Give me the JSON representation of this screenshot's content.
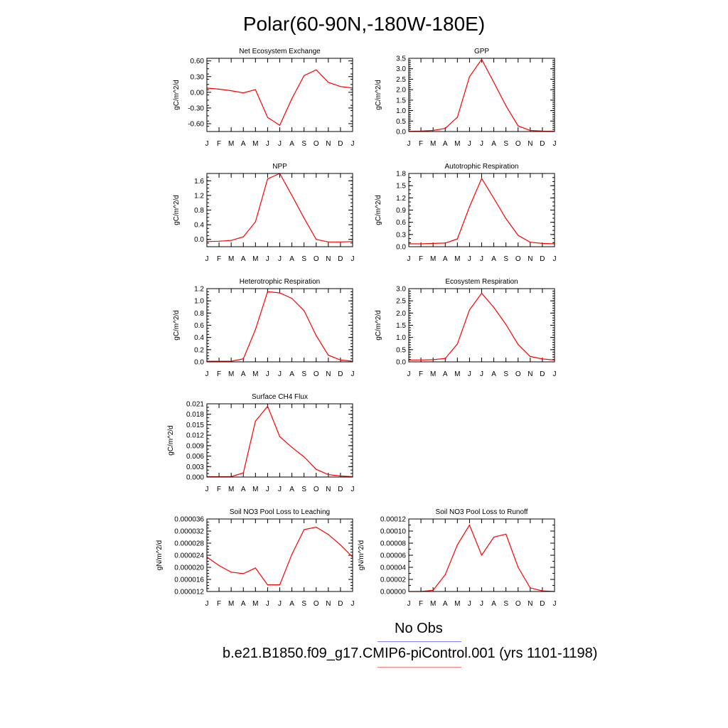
{
  "title": "Polar(60-90N,-180W-180E)",
  "month_labels": [
    "J",
    "F",
    "M",
    "A",
    "M",
    "J",
    "J",
    "A",
    "S",
    "O",
    "N",
    "D",
    "J"
  ],
  "line_color": "#ff0000",
  "chart_data": [
    {
      "type": "line",
      "title": "Net Ecosystem Exchange",
      "ylabel": "gC/m^2/d",
      "ylim": [
        -0.75,
        0.65
      ],
      "yticks": [
        -0.6,
        -0.3,
        0.0,
        0.3,
        0.6
      ],
      "ytick_labels": [
        "-0.60",
        "-0.30",
        "0.00",
        "0.30",
        "0.60"
      ],
      "yminor": 0.1,
      "values": [
        0.08,
        0.06,
        0.03,
        -0.01,
        0.05,
        -0.48,
        -0.63,
        -0.12,
        0.32,
        0.43,
        0.19,
        0.11,
        0.08
      ]
    },
    {
      "type": "line",
      "title": "GPP",
      "ylabel": "gC/m^2/d",
      "ylim": [
        0,
        3.5
      ],
      "yticks": [
        0,
        0.5,
        1.0,
        1.5,
        2.0,
        2.5,
        3.0,
        3.5
      ],
      "ytick_labels": [
        "0.0",
        "0.5",
        "1.0",
        "1.5",
        "2.0",
        "2.5",
        "3.0",
        "3.5"
      ],
      "yminor": 0.1,
      "values": [
        0.01,
        0.02,
        0.05,
        0.15,
        0.68,
        2.62,
        3.45,
        2.35,
        1.23,
        0.27,
        0.05,
        0.02,
        0.01
      ]
    },
    {
      "type": "line",
      "title": "NPP",
      "ylabel": "gC/m^2/d",
      "ylim": [
        -0.2,
        1.8
      ],
      "yticks": [
        0,
        0.4,
        0.8,
        1.2,
        1.6
      ],
      "ytick_labels": [
        "0.0",
        "0.4",
        "0.8",
        "1.2",
        "1.6"
      ],
      "yminor": 0.1,
      "values": [
        -0.06,
        -0.05,
        -0.03,
        0.07,
        0.48,
        1.65,
        1.8,
        1.2,
        0.58,
        0.0,
        -0.07,
        -0.07,
        -0.06
      ]
    },
    {
      "type": "line",
      "title": "Autotrophic Respiration",
      "ylabel": "gC/m^2/d",
      "ylim": [
        0,
        1.8
      ],
      "yticks": [
        0,
        0.3,
        0.6,
        0.9,
        1.2,
        1.5,
        1.8
      ],
      "ytick_labels": [
        "0.0",
        "0.3",
        "0.6",
        "0.9",
        "1.2",
        "1.5",
        "1.8"
      ],
      "yminor": 0.1,
      "values": [
        0.07,
        0.07,
        0.08,
        0.09,
        0.19,
        0.98,
        1.68,
        1.19,
        0.69,
        0.28,
        0.11,
        0.08,
        0.07
      ]
    },
    {
      "type": "line",
      "title": "Heterotrophic Respiration",
      "ylabel": "gC/m^2/d",
      "ylim": [
        0,
        1.2
      ],
      "yticks": [
        0,
        0.2,
        0.4,
        0.6,
        0.8,
        1.0,
        1.2
      ],
      "ytick_labels": [
        "0.0",
        "0.2",
        "0.4",
        "0.6",
        "0.8",
        "1.0",
        "1.2"
      ],
      "yminor": 0.05,
      "values": [
        0.01,
        0.01,
        0.01,
        0.05,
        0.53,
        1.15,
        1.13,
        1.04,
        0.84,
        0.43,
        0.11,
        0.03,
        0.01
      ]
    },
    {
      "type": "line",
      "title": "Ecosystem Respiration",
      "ylabel": "gC/m^2/d",
      "ylim": [
        0,
        3.0
      ],
      "yticks": [
        0,
        0.5,
        1.0,
        1.5,
        2.0,
        2.5,
        3.0
      ],
      "ytick_labels": [
        "0.0",
        "0.5",
        "1.0",
        "1.5",
        "2.0",
        "2.5",
        "3.0"
      ],
      "yminor": 0.1,
      "values": [
        0.08,
        0.08,
        0.09,
        0.14,
        0.73,
        2.13,
        2.81,
        2.23,
        1.53,
        0.71,
        0.22,
        0.12,
        0.08
      ]
    },
    {
      "type": "line",
      "title": "Surface CH4 Flux",
      "ylabel": "gC/m^2/d",
      "ylim": [
        0,
        0.021
      ],
      "yticks": [
        0,
        0.003,
        0.006,
        0.009,
        0.012,
        0.015,
        0.018,
        0.021
      ],
      "ytick_labels": [
        "0.000",
        "0.003",
        "0.006",
        "0.009",
        "0.012",
        "0.015",
        "0.018",
        "0.021"
      ],
      "yminor": 0.001,
      "values": [
        0.0001,
        0.0001,
        0.0001,
        0.0012,
        0.016,
        0.0203,
        0.0116,
        0.0085,
        0.0058,
        0.0022,
        0.0007,
        0.0003,
        0.0001
      ]
    },
    {
      "type": "line",
      "title": "Soil NO3 Pool Loss to Leaching",
      "ylabel": "gN/m^2/d",
      "ylim": [
        1.2e-05,
        3.6e-05
      ],
      "yticks": [
        1.2e-05,
        1.6e-05,
        2e-05,
        2.4e-05,
        2.8e-05,
        3.2e-05,
        3.6e-05
      ],
      "ytick_labels": [
        "0.000012",
        "0.000016",
        "0.000020",
        "0.000024",
        "0.000028",
        "0.000032",
        "0.000036"
      ],
      "yminor": 1e-06,
      "values": [
        2.34e-05,
        2.06e-05,
        1.84e-05,
        1.79e-05,
        1.98e-05,
        1.42e-05,
        1.42e-05,
        2.43e-05,
        3.25e-05,
        3.33e-05,
        3.09e-05,
        2.74e-05,
        2.34e-05
      ]
    },
    {
      "type": "line",
      "title": "Soil NO3 Pool Loss to Runoff",
      "ylabel": "gN/m^2/d",
      "ylim": [
        0,
        0.00012
      ],
      "yticks": [
        0,
        2e-05,
        4e-05,
        6e-05,
        8e-05,
        0.0001,
        0.00012
      ],
      "ytick_labels": [
        "0.00000",
        "0.00002",
        "0.00004",
        "0.00006",
        "0.00008",
        "0.00010",
        "0.00012"
      ],
      "yminor": 1e-05,
      "values": [
        0.0,
        0.0,
        2e-06,
        2.8e-05,
        7.7e-05,
        0.00011,
        6e-05,
        9e-05,
        9.5e-05,
        4e-05,
        6e-06,
        1e-06,
        0.0
      ]
    }
  ],
  "legend": {
    "obs_label": "No Obs",
    "obs_color": "#8080ff",
    "model_label": "b.e21.B1850.f09_g17.CMIP6-piControl.001 (yrs 1101-1198)",
    "model_color": "#ff8080"
  }
}
